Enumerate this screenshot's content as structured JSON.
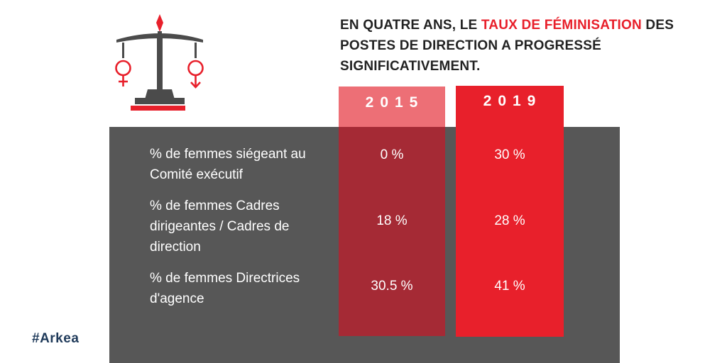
{
  "headline": {
    "part1": "EN QUATRE ANS,  LE ",
    "highlight": "TAUX DE FÉMINISATION",
    "part2": " DES POSTES DE DIRECTION  A PROGRESSÉ SIGNIFICATIVEMENT."
  },
  "columns": {
    "year_2015": "2015",
    "year_2019": "2019"
  },
  "rows": [
    {
      "label": "%  de femmes siégeant au Comité exécutif",
      "v2015": "0 %",
      "v2019": "30 %"
    },
    {
      "label": "%  de femmes Cadres dirigeantes /  Cadres de direction",
      "v2015": "18 %",
      "v2019": "28 %"
    },
    {
      "label": "%  de femmes Directrices d'agence",
      "v2015": "30.5 %",
      "v2019": "41 %"
    }
  ],
  "footer": {
    "hashtag": "#Arkea"
  },
  "icons": {
    "scale": "balance-scale-gender-icon"
  },
  "colors": {
    "accent_red": "#e8202b",
    "light_red": "#e84650",
    "dark_red": "#a52a35",
    "panel_gray": "#575757",
    "hashtag_navy": "#1f3a5a"
  }
}
